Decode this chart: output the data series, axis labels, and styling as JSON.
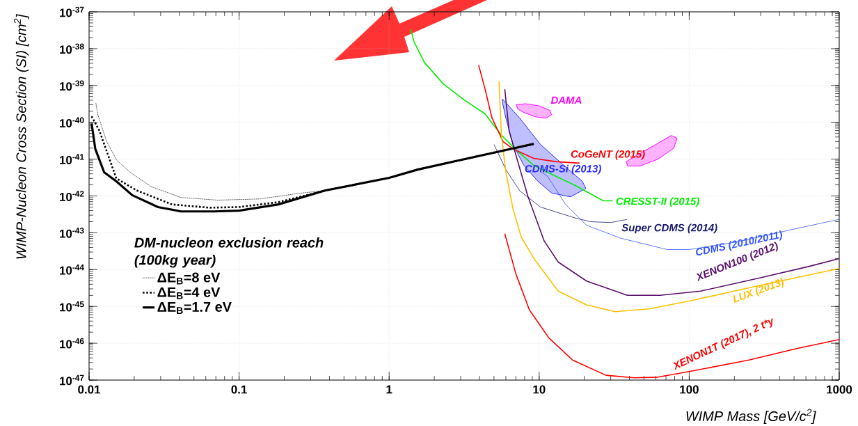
{
  "chart_data": {
    "type": "line",
    "xlabel": "WIMP Mass [GeV/c$^{2}$]",
    "ylabel": "WIMP-Nucleon Cross Section (SI) [cm$^{2}$]",
    "legend_title": "DM-nucleon exclusion reach (100kg year)",
    "log": "xy",
    "grid": true,
    "legend": "bottom left",
    "marker": "none",
    "xlim": [
      0.01,
      1000
    ],
    "xticks": [
      0.01,
      0.1,
      1,
      10,
      100,
      1000
    ],
    "ylim": [
      1e-47,
      1e-37
    ],
    "yticks": [
      {
        "value": 1e-47,
        "label": "10$^{-47}$"
      },
      {
        "value": 1e-46,
        "label": "10$^{-46}$"
      },
      {
        "value": 1e-45,
        "label": "10$^{-45}$"
      },
      {
        "value": 1e-44,
        "label": "10$^{-44}$"
      },
      {
        "value": 1e-43,
        "label": "10$^{-43}$"
      },
      {
        "value": 1e-42,
        "label": "10$^{-42}$"
      },
      {
        "value": 1e-41,
        "label": "10$^{-41}$"
      },
      {
        "value": 1e-40,
        "label": "10$^{-40}$"
      },
      {
        "value": 1e-39,
        "label": "10$^{-39}$"
      },
      {
        "value": 1e-38,
        "label": "10$^{-38}$"
      },
      {
        "value": 1e-37,
        "label": "10$^{-37}$"
      }
    ],
    "series": [
      {
        "name": "ΔE$_{B}$=8 eV",
        "line_style": "dotted",
        "color": "#000000",
        "x": [
          0.0111,
          0.0114,
          0.0131,
          0.0153,
          0.0188,
          0.0259,
          0.041,
          0.072,
          0.137,
          0.26,
          0.373,
          1,
          1.55,
          2.94,
          9.2
        ],
        "values": [
          3.3e-40,
          1.7e-40,
          3e-41,
          9.3e-42,
          4.4e-42,
          1.8e-42,
          9.1e-43,
          7.7e-43,
          8.3e-43,
          1.2e-42,
          1.4e-42,
          3.1e-42,
          5.2e-42,
          9.3e-42,
          2.6e-41
        ]
      },
      {
        "name": "ΔE$_{B}$=4 eV",
        "line_style": "dotted",
        "color": "#000000",
        "x": [
          0.0104,
          0.0117,
          0.0152,
          0.0209,
          0.0357,
          0.063,
          0.1,
          0.183,
          0.373,
          1,
          1.55,
          2.94,
          9.2
        ],
        "values": [
          1.45e-40,
          6e-41,
          3e-42,
          1.4e-42,
          5.9e-43,
          4.8e-43,
          5e-43,
          6.8e-43,
          1.4e-42,
          3.1e-42,
          5.2e-42,
          9.3e-42,
          2.6e-41
        ]
      },
      {
        "name": "ΔE$_{B}$=1.7 eV",
        "line_style": "solid",
        "color": "#000000",
        "x": [
          0.0104,
          0.011,
          0.0126,
          0.0152,
          0.0194,
          0.0288,
          0.041,
          0.068,
          0.1,
          0.183,
          0.373,
          1,
          1.55,
          2.94,
          9.2
        ],
        "values": [
          9.3e-41,
          1.9e-41,
          4.4e-42,
          2.5e-42,
          1.05e-42,
          5e-43,
          3.8e-43,
          3.8e-43,
          4e-43,
          5.9e-43,
          1.4e-42,
          3.1e-42,
          5.2e-42,
          9.3e-42,
          2.6e-41
        ]
      },
      {
        "name": "CRESST-II (2015)",
        "color": "#00ee00",
        "x": [
          1.39,
          1.47,
          1.72,
          2.3,
          3.16,
          4.35,
          5.57,
          6.9,
          9.2,
          12.1,
          17.5,
          26.8,
          31
        ],
        "values": [
          3.4e-38,
          1.5e-38,
          4.2e-39,
          1.1e-39,
          4.1e-40,
          1.7e-40,
          4.6e-41,
          1.9e-41,
          6.8e-42,
          3.9e-42,
          1.9e-42,
          7.4e-43,
          7.4e-43
        ]
      },
      {
        "name": "CoGeNT (2015)",
        "color": "#ff0000",
        "x": [
          3.95,
          4.35,
          4.85,
          5.75,
          6.69,
          9.2,
          13.1,
          18.6
        ],
        "values": [
          3.6e-39,
          8.3e-40,
          1.3e-40,
          3e-41,
          1.9e-41,
          1.05e-41,
          8.5e-42,
          7.8e-42
        ]
      },
      {
        "name": "CDMS-Si (2013)",
        "type": "area",
        "color": "#2a2aff",
        "x": [
          5.69,
          7.43,
          10.2,
          14.6,
          19.4,
          20.5,
          16.2,
          12.1,
          9.8,
          7.9,
          6.7,
          6.0,
          5.69
        ],
        "values": [
          4.3e-40,
          1.3e-40,
          2.5e-41,
          6.8e-42,
          2.5e-42,
          1.6e-42,
          9.5e-43,
          1.2e-42,
          2.5e-42,
          6.8e-42,
          2.5e-41,
          1.3e-40,
          3.5e-40
        ]
      },
      {
        "name": "DAMA",
        "type": "area",
        "color": "#ff00ff",
        "x": [
          7.05,
          8.1,
          10.0,
          11.8,
          12.1,
          11.1,
          9.5,
          7.8,
          7.2
        ],
        "values": [
          3e-40,
          3.2e-40,
          2.8e-40,
          2.1e-40,
          1.6e-40,
          1.3e-40,
          1.4e-40,
          1.9e-40,
          2.3e-40
        ]
      },
      {
        "type": "area",
        "color": "#ff00ff",
        "x": [
          38,
          45,
          62,
          76,
          83,
          79,
          62,
          47,
          39
        ],
        "values": [
          8.5e-42,
          1.3e-41,
          2.7e-41,
          4.4e-41,
          3.7e-41,
          2e-41,
          1e-41,
          6.5e-42,
          6.5e-42
        ]
      },
      {
        "name": "Super CDMS (2014)",
        "color": "#1a1a6e",
        "x": [
          5.0,
          6.0,
          7.4,
          10.2,
          17.5,
          22,
          30,
          38.5
        ],
        "values": [
          2.5e-41,
          5.2e-42,
          1.4e-42,
          5e-43,
          2.5e-43,
          2e-43,
          1.9e-43,
          2.3e-43
        ]
      },
      {
        "name": "CDMS (2010/2011)",
        "color": "#3355ff",
        "x": [
          10.4,
          11.4,
          15.0,
          20.7,
          30.8,
          34.6,
          71.5,
          100,
          206,
          430,
          890,
          1000
        ],
        "values": [
          4.4e-42,
          3.4e-42,
          5.9e-43,
          1.6e-43,
          8.7e-44,
          7.2e-44,
          3.5e-44,
          3.5e-44,
          5.6e-44,
          1.1e-43,
          2.1e-43,
          2.3e-43
        ]
      },
      {
        "name": "XENON100 (2012)",
        "color": "#5b0f6b",
        "x": [
          5.9,
          6.3,
          7.1,
          8.4,
          10.8,
          13.4,
          20.7,
          38.7,
          64,
          119,
          299,
          618,
          1000
        ],
        "values": [
          7.9e-40,
          6e-41,
          1.05e-41,
          1e-42,
          6e-44,
          1.6e-44,
          4.9e-45,
          2e-45,
          2e-45,
          2.6e-45,
          6e-45,
          1.2e-44,
          2e-44
        ]
      },
      {
        "name": "LUX (2013)",
        "color": "#ffc000",
        "x": [
          5.4,
          5.6,
          6.0,
          6.7,
          7.6,
          9.3,
          13.4,
          20.7,
          32,
          54,
          100,
          250,
          515,
          1000
        ],
        "values": [
          1.3e-39,
          4.7e-41,
          4.4e-42,
          4.4e-43,
          7.6e-44,
          1.9e-44,
          2.6e-45,
          1.1e-45,
          7.2e-46,
          8.6e-46,
          1.4e-45,
          3.2e-45,
          6e-45,
          1.07e-44
        ]
      },
      {
        "name": "XENON1T (2017), 2 t*y",
        "color": "#ff0000",
        "x": [
          5.9,
          7.0,
          8.6,
          11.6,
          16.7,
          27.9,
          43,
          62,
          100,
          250,
          515,
          1000
        ],
        "values": [
          9.5e-44,
          7.6e-45,
          8.1e-46,
          1.4e-46,
          3.5e-47,
          1.35e-47,
          1.15e-47,
          1.2e-47,
          1.7e-47,
          3.5e-47,
          7.1e-47,
          1.26e-46
        ]
      }
    ]
  }
}
